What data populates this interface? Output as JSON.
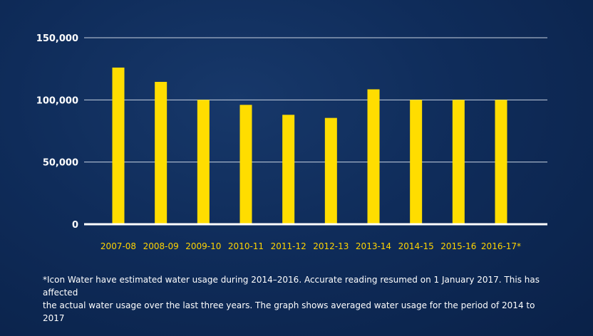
{
  "chart_data": {
    "type": "bar",
    "title": "",
    "xlabel": "",
    "ylabel": "",
    "categories": [
      "2007-08",
      "2008-09",
      "2009-10",
      "2010-11",
      "2011-12",
      "2012-13",
      "2013-14",
      "2014-15",
      "2015-16",
      "2016-17*"
    ],
    "values": [
      126000,
      114500,
      100000,
      96000,
      88000,
      85500,
      108500,
      100000,
      100000,
      100000
    ],
    "ylim": [
      0,
      150000
    ],
    "yticks": [
      0,
      50000,
      100000,
      150000
    ],
    "ytick_labels": [
      "0",
      "50,000",
      "100,000",
      "150,000"
    ],
    "grid": true,
    "legend": "none",
    "colors": {
      "bar": "#ffdd00",
      "tick_x": "#ffd400",
      "tick_y": "#ffffff",
      "grid": "#c8d2e0",
      "baseline": "#ffffff",
      "background": "#0f2c5a"
    }
  },
  "footnote": {
    "line1": "*Icon Water have estimated water usage during 2014–2016. Accurate reading resumed on 1 January 2017. This has affected",
    "line2": "the actual water usage over the last three years. The graph shows averaged water usage for the period of 2014 to 2017"
  }
}
